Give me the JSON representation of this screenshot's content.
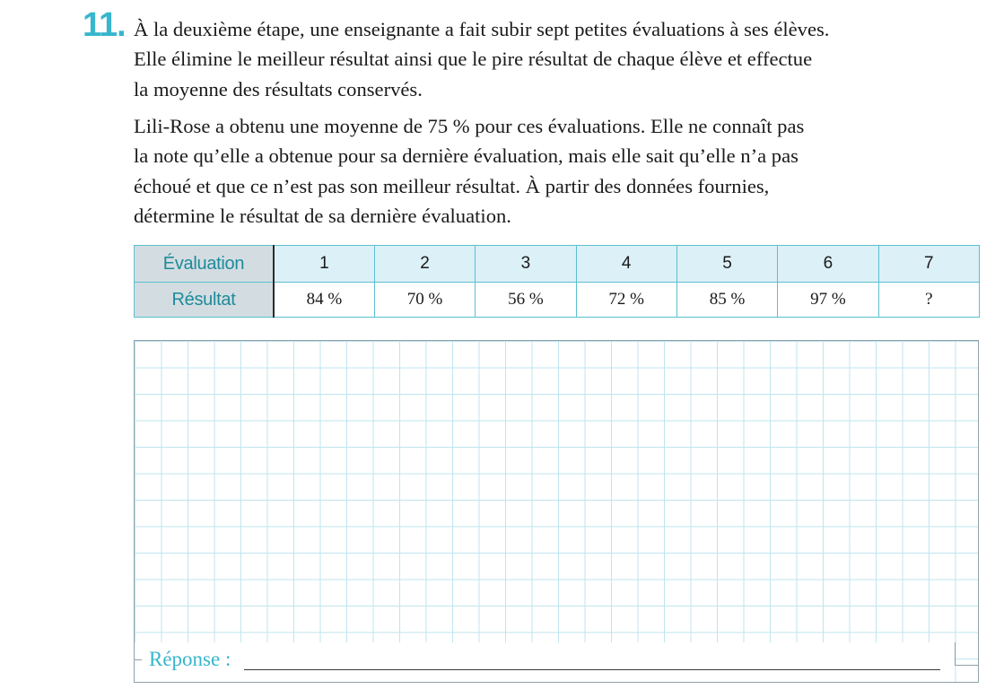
{
  "exercise": {
    "number": "11.",
    "paragraph1": [
      "À la deuxième étape, une enseignante a fait subir sept petites évaluations à ses élèves.",
      "Elle élimine le meilleur résultat ainsi que le pire résultat de chaque élève et effectue",
      "la moyenne des résultats conservés."
    ],
    "paragraph2": [
      "Lili-Rose a obtenu une moyenne de 75 % pour ces évaluations. Elle ne connaît pas",
      "la note qu’elle a obtenue pour sa dernière évaluation, mais elle sait qu’elle n’a pas",
      "échoué et que ce n’est pas son meilleur résultat. À partir des données fournies,",
      "détermine le résultat de sa dernière évaluation."
    ]
  },
  "table": {
    "row1_header": "Évaluation",
    "row2_header": "Résultat",
    "evaluations": [
      "1",
      "2",
      "3",
      "4",
      "5",
      "6",
      "7"
    ],
    "results": [
      "84 %",
      "70 %",
      "56 %",
      "72 %",
      "85 %",
      "97 %",
      "?"
    ]
  },
  "answer": {
    "label": "Réponse :"
  },
  "colors": {
    "accent": "#37b6cd",
    "table_border": "#5bbfd2",
    "header_bg": "#d3dde1",
    "header_text": "#1e8a9b",
    "row1_bg": "#dcf0f7",
    "grid_line": "#bfe5ef"
  }
}
